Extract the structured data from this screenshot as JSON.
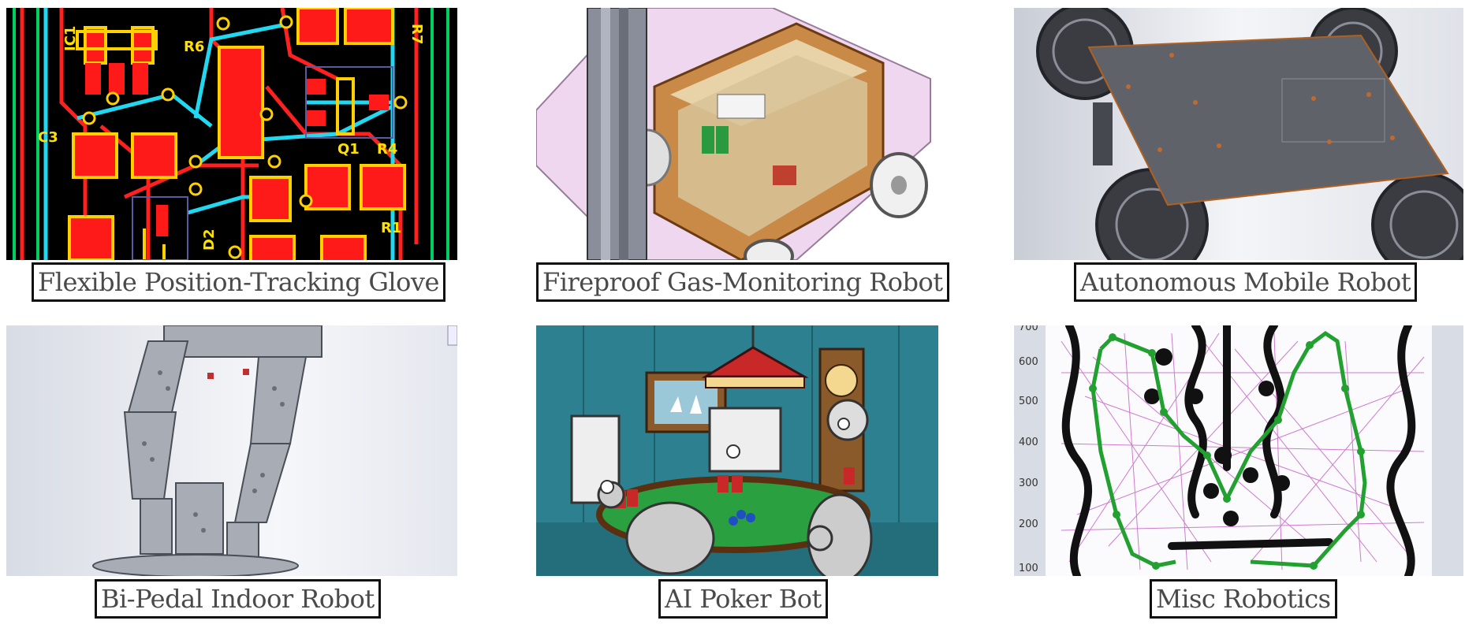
{
  "projects": [
    {
      "title": "Flexible Position-Tracking Glove",
      "image": "pcb-layout-image",
      "pcb_labels": [
        "IC1",
        "R6",
        "R7",
        "C3",
        "Q1",
        "R4",
        "R1",
        "D2"
      ]
    },
    {
      "title": "Fireproof Gas-Monitoring Robot",
      "image": "robot-cad-image"
    },
    {
      "title": "Autonomous Mobile Robot",
      "image": "mobile-robot-cad-image"
    },
    {
      "title": "Bi-Pedal Indoor Robot",
      "image": "biped-robot-cad-image"
    },
    {
      "title": "AI Poker Bot",
      "image": "poker-robots-illustration"
    },
    {
      "title": "Misc Robotics",
      "image": "path-planning-plot",
      "y_ticks": [
        "700",
        "600",
        "500",
        "400",
        "300",
        "200",
        "100"
      ]
    }
  ]
}
